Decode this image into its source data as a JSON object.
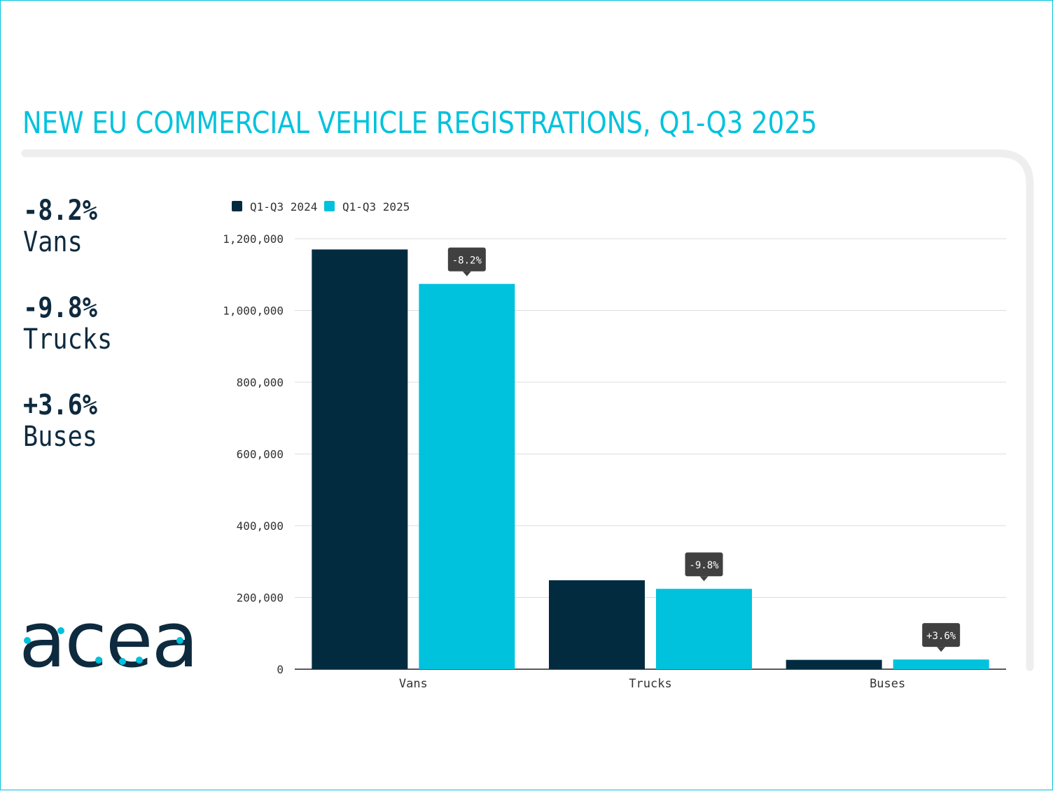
{
  "title": "NEW EU COMMERCIAL VEHICLE REGISTRATIONS, Q1-Q3 2025",
  "stats": [
    {
      "pct": "-8.2%",
      "label": "Vans"
    },
    {
      "pct": "-9.8%",
      "label": "Trucks"
    },
    {
      "pct": "+3.6%",
      "label": "Buses"
    }
  ],
  "logo": "acea",
  "colors": {
    "accent": "#00c2dc",
    "dark": "#0e2a3e",
    "series2024": "#022b40",
    "series2025": "#00c2dc",
    "tooltip": "#404040"
  },
  "chart_data": {
    "type": "bar",
    "categories": [
      "Vans",
      "Trucks",
      "Buses"
    ],
    "series": [
      {
        "name": "Q1-Q3 2024",
        "values": [
          1170000,
          248000,
          26000
        ]
      },
      {
        "name": "Q1-Q3 2025",
        "values": [
          1074000,
          224000,
          27000
        ]
      }
    ],
    "annotations": [
      "-8.2%",
      "-9.8%",
      "+3.6%"
    ],
    "yticks": [
      0,
      200000,
      400000,
      600000,
      800000,
      1000000,
      1200000
    ],
    "ytick_labels": [
      "0",
      "200,000",
      "400,000",
      "600,000",
      "800,000",
      "1,000,000",
      "1,200,000"
    ],
    "ylim": [
      0,
      1200000
    ],
    "grid": true,
    "legend": "top-left"
  }
}
